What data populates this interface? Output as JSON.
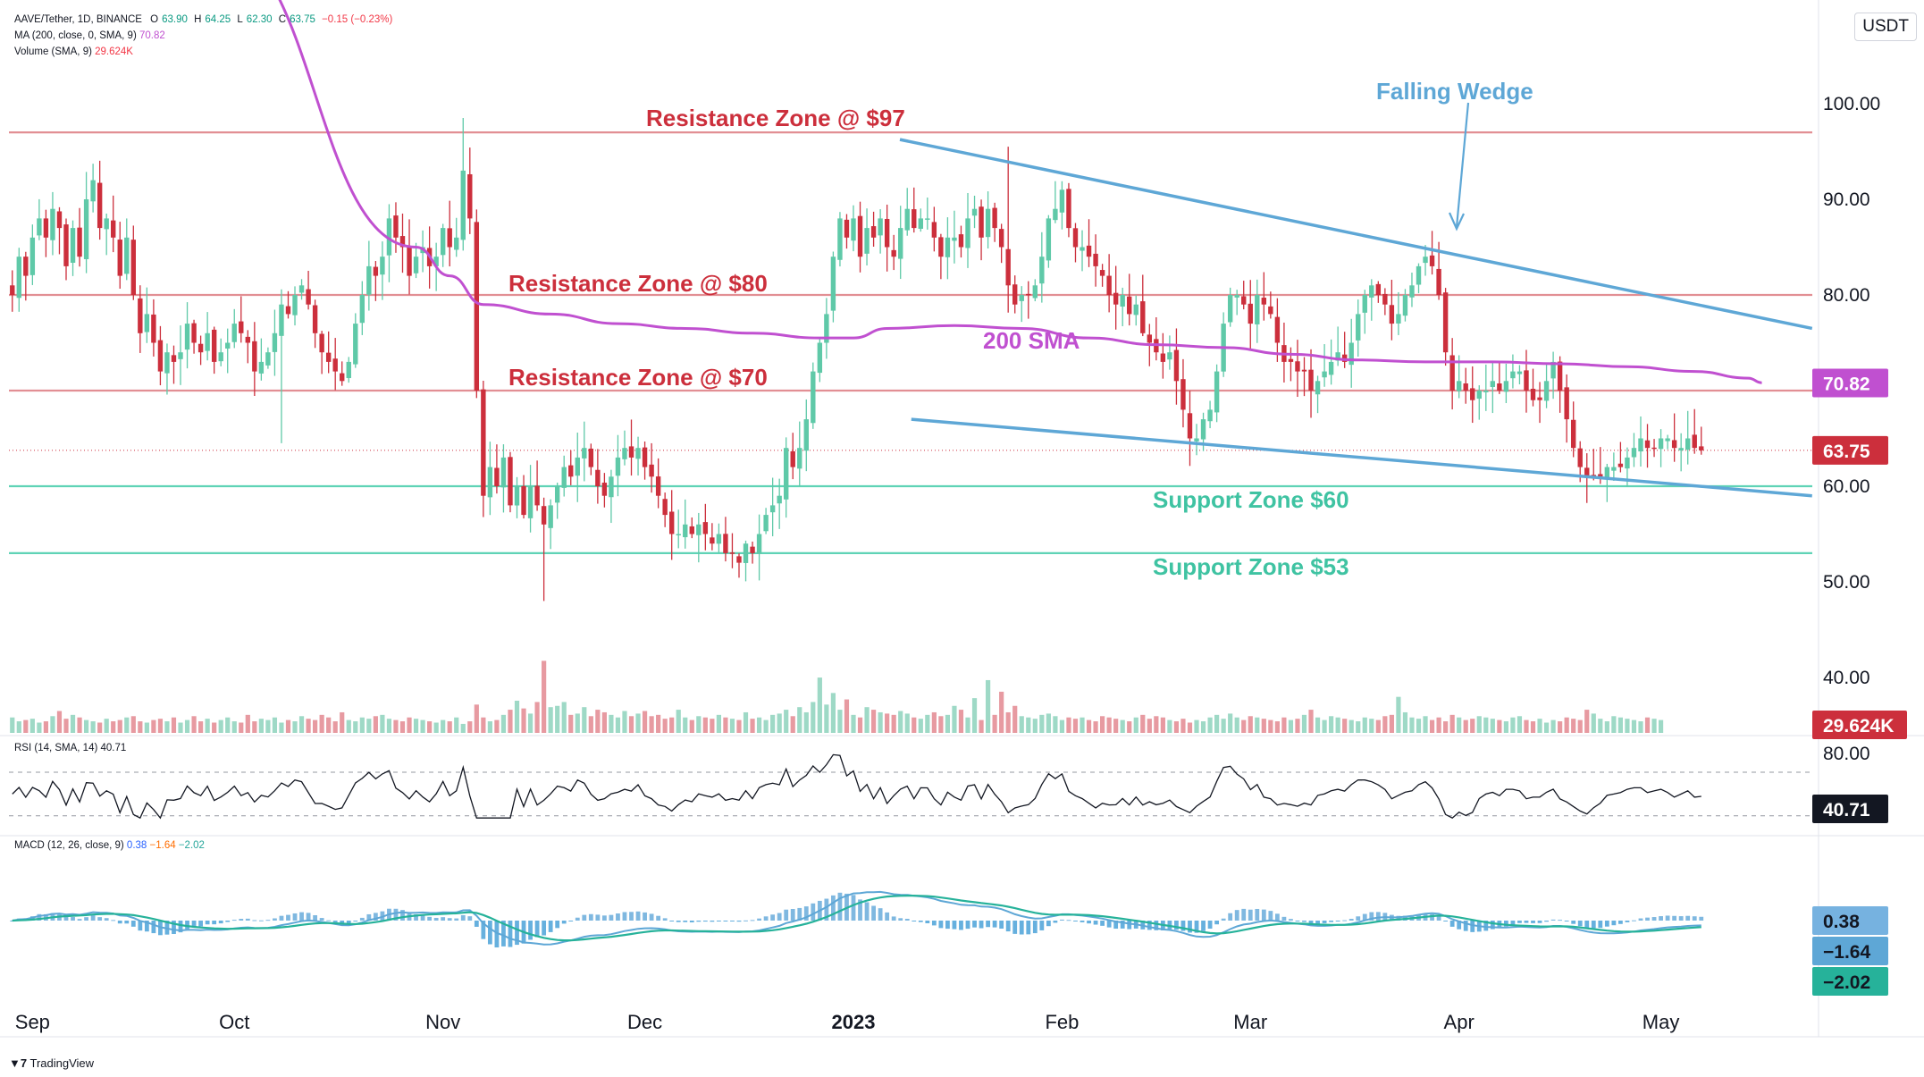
{
  "header": {
    "symbol": "AAVE/Tether, 1D, BINANCE",
    "o_label": "O",
    "o": "63.90",
    "h_label": "H",
    "h": "64.25",
    "l_label": "L",
    "l": "62.30",
    "c_label": "C",
    "c": "63.75",
    "chg": "−0.15 (−0.23%)",
    "ma_label": "MA (200, close, 0, SMA, 9)",
    "ma_value": "70.82",
    "vol_label": "Volume (SMA, 9)",
    "vol_value": "29.624K",
    "rsi_label": "RSI (14, SMA, 14)",
    "rsi_value": "40.71",
    "macd_label": "MACD (12, 26, close, 9)",
    "macd_v1": "0.38",
    "macd_v2": "−1.64",
    "macd_v3": "−2.02"
  },
  "currency": "USDT",
  "brand": "TradingView",
  "colors": {
    "up": "#5fc9a8",
    "down": "#cc2f3c",
    "resistance": "#e28f94",
    "support": "#5fd3b6",
    "wedge": "#5ea7d6",
    "sma": "#c050d0",
    "rsi": "#131722",
    "macd": "#5ea7d6",
    "signal": "#26b29a"
  },
  "chart_data": {
    "type": "candlestick",
    "title": "AAVE/Tether, 1D, BINANCE",
    "price_axis": {
      "ticks": [
        "100.00",
        "90.00",
        "80.00",
        "70.00",
        "60.00",
        "50.00",
        "40.00"
      ],
      "ylim": [
        35,
        105
      ]
    },
    "x_axis": {
      "labels": [
        "Sep",
        "Oct",
        "Nov",
        "Dec",
        "2023",
        "Feb",
        "Mar",
        "Apr",
        "May"
      ],
      "label_day_index": [
        3,
        33,
        64,
        94,
        125,
        156,
        184,
        215,
        245
      ],
      "total_days": 268
    },
    "last_price": "63.75",
    "sma_value_label": "70.82",
    "volume_value_label": "29.624K",
    "price_closes": [
      80,
      84,
      82,
      86,
      88,
      86,
      89,
      87,
      83,
      87,
      84,
      90,
      92,
      87,
      88,
      86,
      82,
      86,
      80,
      76,
      78,
      75,
      72,
      74,
      73,
      74,
      77,
      75,
      74,
      76,
      73,
      74,
      75,
      77,
      76,
      75,
      72,
      73,
      74,
      76,
      79,
      78,
      80,
      81,
      79,
      76,
      74,
      73,
      72,
      71,
      73,
      77,
      80,
      83,
      82,
      84,
      88,
      86,
      85,
      82,
      84,
      85,
      83,
      84,
      87,
      85,
      86,
      93,
      88,
      70,
      59,
      62,
      60,
      63,
      58,
      60,
      57,
      60,
      58,
      56,
      58,
      60,
      62,
      61,
      63,
      64,
      62,
      60,
      59,
      61,
      63,
      64,
      63,
      64,
      62,
      61,
      59,
      57,
      55,
      55,
      56,
      55,
      56,
      55,
      54,
      55,
      53,
      53,
      52,
      54,
      53,
      55,
      57,
      58,
      59,
      64,
      62,
      64,
      67,
      72,
      75,
      78,
      84,
      88,
      86,
      88,
      84,
      87,
      86,
      88,
      85,
      84,
      87,
      89,
      87,
      88,
      88,
      86,
      84,
      86,
      86,
      85,
      88,
      89,
      86,
      89,
      87,
      85,
      81,
      79,
      80,
      80,
      81,
      84,
      88,
      89,
      91,
      87,
      85,
      85,
      84,
      83,
      82,
      80,
      79,
      80,
      78,
      79,
      76,
      75,
      74,
      73,
      74,
      71,
      68,
      65,
      65,
      67,
      68,
      72,
      77,
      80,
      80,
      79,
      77,
      80,
      79,
      78,
      75,
      73,
      73,
      72,
      72,
      70,
      71,
      72,
      73,
      74,
      73,
      75,
      78,
      80,
      81,
      80,
      79,
      77,
      78,
      80,
      81,
      83,
      84,
      83,
      80,
      74,
      70,
      71,
      70,
      69,
      70,
      70,
      71,
      70,
      71,
      72,
      72,
      70,
      69,
      69,
      71,
      73,
      70,
      67,
      64,
      62,
      61,
      61,
      61,
      62,
      62,
      62,
      63,
      64,
      65,
      64,
      64,
      65,
      65,
      64,
      64,
      65,
      64,
      63.75
    ],
    "sma200": {
      "anchor_days": [
        0,
        30,
        60,
        65,
        70,
        80,
        90,
        100,
        110,
        120,
        125,
        130,
        140,
        150,
        160,
        170,
        180,
        190,
        200,
        210,
        220,
        230,
        240,
        250,
        258,
        260
      ],
      "values": [
        122,
        117,
        85,
        82,
        79,
        78,
        77,
        76.5,
        76,
        75.5,
        75.5,
        76.5,
        76.8,
        76.5,
        75.5,
        74.8,
        74.5,
        73.8,
        73.2,
        73,
        73,
        72.8,
        72.5,
        72,
        71.3,
        70.82
      ]
    },
    "volume": [
      12,
      9,
      10,
      11,
      8,
      9,
      13,
      17,
      11,
      14,
      12,
      10,
      9,
      8,
      11,
      9,
      10,
      12,
      13,
      9,
      8,
      10,
      11,
      9,
      12,
      8,
      10,
      13,
      9,
      11,
      8,
      10,
      12,
      9,
      8,
      14,
      9,
      11,
      10,
      12,
      8,
      10,
      9,
      13,
      11,
      10,
      14,
      12,
      9,
      16,
      10,
      9,
      12,
      11,
      13,
      14,
      11,
      10,
      9,
      12,
      11,
      10,
      9,
      8,
      10,
      9,
      12,
      7,
      9,
      22,
      12,
      9,
      10,
      14,
      18,
      25,
      19,
      15,
      24,
      56,
      20,
      21,
      24,
      14,
      15,
      20,
      13,
      18,
      16,
      14,
      12,
      17,
      13,
      15,
      17,
      13,
      14,
      11,
      12,
      18,
      12,
      10,
      13,
      12,
      11,
      14,
      12,
      11,
      10,
      16,
      11,
      12,
      10,
      14,
      15,
      18,
      13,
      20,
      16,
      24,
      43,
      22,
      31,
      18,
      26,
      14,
      12,
      20,
      18,
      16,
      15,
      14,
      17,
      15,
      12,
      11,
      14,
      16,
      13,
      14,
      21,
      18,
      12,
      27,
      10,
      41,
      14,
      32,
      16,
      21,
      13,
      12,
      11,
      14,
      15,
      13,
      10,
      12,
      11,
      12,
      10,
      9,
      13,
      12,
      11,
      10,
      9,
      12,
      14,
      11,
      13,
      12,
      10,
      9,
      11,
      8,
      10,
      9,
      12,
      14,
      11,
      15,
      12,
      10,
      13,
      12,
      11,
      10,
      9,
      12,
      10,
      11,
      14,
      18,
      12,
      10,
      13,
      12,
      11,
      10,
      9,
      12,
      11,
      10,
      13,
      14,
      28,
      16,
      12,
      11,
      13,
      10,
      12,
      9,
      14,
      12,
      10,
      11,
      13,
      12,
      11,
      10,
      9,
      12,
      13,
      10,
      9,
      11,
      8,
      10,
      9,
      12,
      11,
      10,
      18,
      15,
      11,
      9,
      13,
      12,
      11,
      10,
      9,
      12,
      11,
      10
    ],
    "rsi": {
      "ylim": [
        25,
        90
      ],
      "upper_band": 70,
      "lower_band": 30,
      "tick": "80.00",
      "value_label": "40.71"
    },
    "macd": {
      "value_labels": [
        "0.38",
        "−1.64",
        "−2.02"
      ]
    },
    "annotations": [
      {
        "text": "Resistance Zone @ $97",
        "price": 97
      },
      {
        "text": "Resistance Zone @ $80",
        "price": 80
      },
      {
        "text": "Resistance Zone @ $70",
        "price": 70
      },
      {
        "text": "Support Zone $60",
        "price": 60
      },
      {
        "text": "Support Zone $53",
        "price": 53
      },
      {
        "text": "200 SMA"
      },
      {
        "text": "Falling Wedge"
      }
    ],
    "wedge_upper": {
      "start": [
        142,
        95.5
      ],
      "end": [
        268,
        76.5
      ]
    },
    "wedge_lower": {
      "start": [
        134,
        67
      ],
      "end": [
        268,
        59
      ]
    }
  }
}
